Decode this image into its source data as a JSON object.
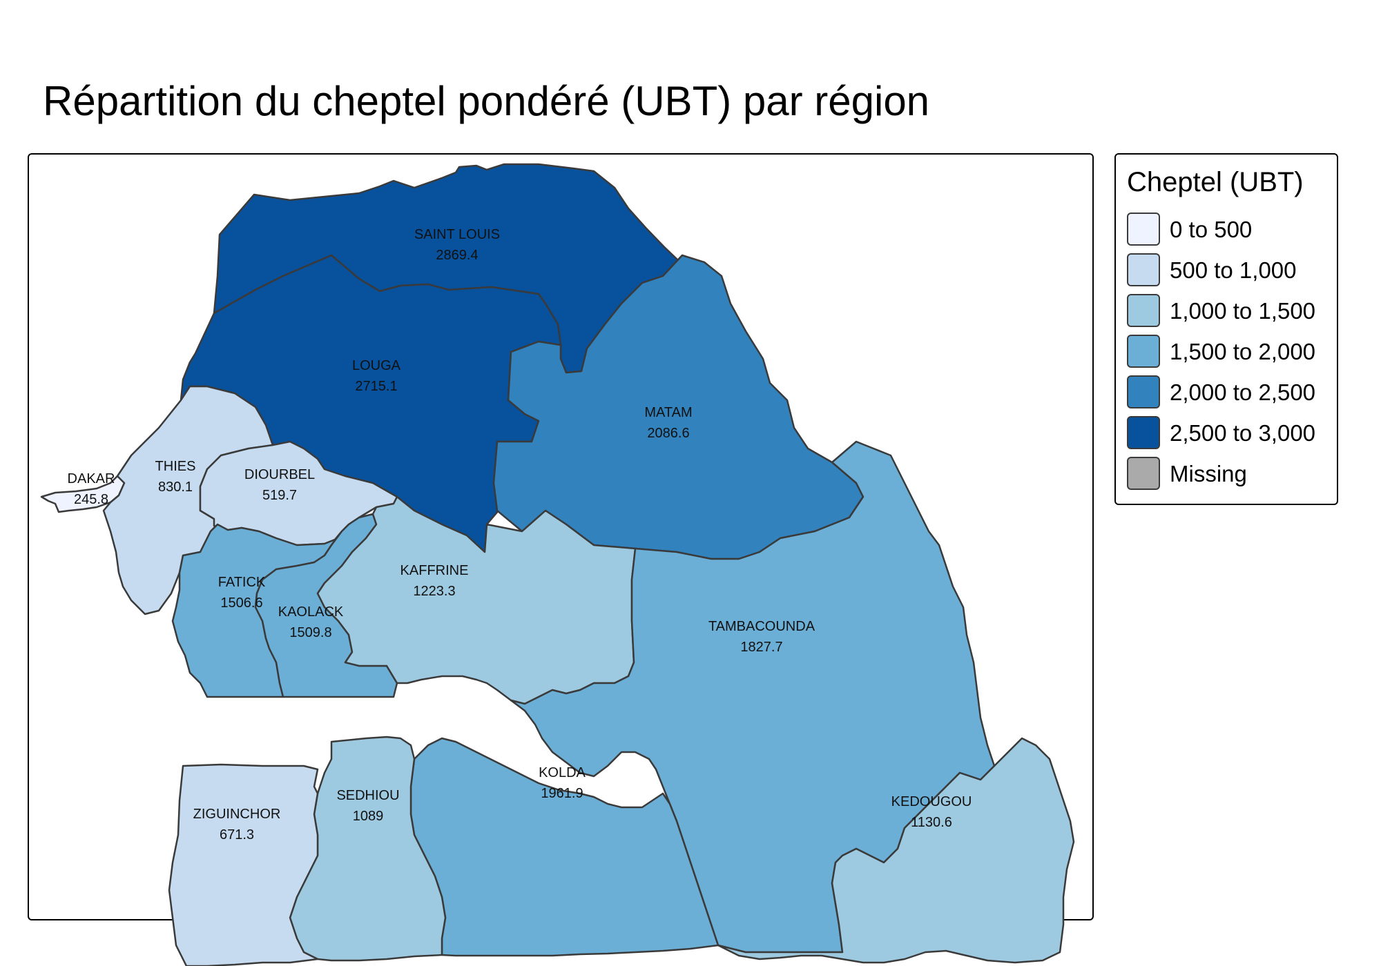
{
  "title": "Répartition du cheptel pondéré (UBT) par région",
  "legend": {
    "title": "Cheptel (UBT)",
    "items": [
      {
        "label": "0 to 500",
        "color": "#eff3ff"
      },
      {
        "label": "500 to 1,000",
        "color": "#c6dbef"
      },
      {
        "label": "1,000 to 1,500",
        "color": "#9ecae1"
      },
      {
        "label": "1,500 to 2,000",
        "color": "#6baed6"
      },
      {
        "label": "2,000 to 2,500",
        "color": "#3182bd"
      },
      {
        "label": "2,500 to 3,000",
        "color": "#08519c"
      },
      {
        "label": "Missing",
        "color": "#aaaaaa"
      }
    ]
  },
  "regions": [
    {
      "name": "SAINT LOUIS",
      "value": "2869.4",
      "color": "#08519c"
    },
    {
      "name": "LOUGA",
      "value": "2715.1",
      "color": "#08519c"
    },
    {
      "name": "MATAM",
      "value": "2086.6",
      "color": "#3182bd"
    },
    {
      "name": "DAKAR",
      "value": "245.8",
      "color": "#eff3ff"
    },
    {
      "name": "THIES",
      "value": "830.1",
      "color": "#c6dbef"
    },
    {
      "name": "DIOURBEL",
      "value": "519.7",
      "color": "#c6dbef"
    },
    {
      "name": "FATICK",
      "value": "1506.6",
      "color": "#6baed6"
    },
    {
      "name": "KAOLACK",
      "value": "1509.8",
      "color": "#6baed6"
    },
    {
      "name": "KAFFRINE",
      "value": "1223.3",
      "color": "#9ecae1"
    },
    {
      "name": "TAMBACOUNDA",
      "value": "1827.7",
      "color": "#6baed6"
    },
    {
      "name": "KOLDA",
      "value": "1961.9",
      "color": "#6baed6"
    },
    {
      "name": "SEDHIOU",
      "value": "1089",
      "color": "#9ecae1"
    },
    {
      "name": "ZIGUINCHOR",
      "value": "671.3",
      "color": "#c6dbef"
    },
    {
      "name": "KEDOUGOU",
      "value": "1130.6",
      "color": "#9ecae1"
    }
  ]
}
